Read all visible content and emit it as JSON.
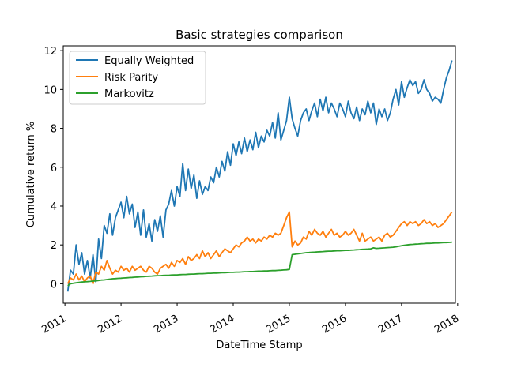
{
  "chart_data": {
    "type": "line",
    "title": "Basic strategies comparison",
    "xlabel": "DateTime Stamp",
    "ylabel": "Cumulative return %",
    "xlim": [
      2010.97,
      2017.96
    ],
    "ylim": [
      -1.0,
      12.25
    ],
    "x_ticks": [
      2011,
      2012,
      2013,
      2014,
      2015,
      2016,
      2017,
      2018
    ],
    "x_tick_labels": [
      "2011",
      "2012",
      "2013",
      "2014",
      "2015",
      "2016",
      "2017",
      "2018"
    ],
    "y_ticks": [
      0,
      2,
      4,
      6,
      8,
      10,
      12
    ],
    "y_tick_labels": [
      "0",
      "2",
      "4",
      "6",
      "8",
      "10",
      "12"
    ],
    "grid": false,
    "legend_position": "top-left",
    "series": [
      {
        "name": "Equally Weighted",
        "color": "#1f77b4",
        "x": [
          2011.05,
          2011.1,
          2011.15,
          2011.2,
          2011.25,
          2011.3,
          2011.35,
          2011.4,
          2011.45,
          2011.5,
          2011.55,
          2011.6,
          2011.65,
          2011.7,
          2011.75,
          2011.8,
          2011.85,
          2011.9,
          2011.95,
          2012.0,
          2012.05,
          2012.1,
          2012.15,
          2012.2,
          2012.25,
          2012.3,
          2012.35,
          2012.4,
          2012.45,
          2012.5,
          2012.55,
          2012.6,
          2012.65,
          2012.7,
          2012.75,
          2012.8,
          2012.85,
          2012.9,
          2012.95,
          2013.0,
          2013.05,
          2013.1,
          2013.15,
          2013.2,
          2013.25,
          2013.3,
          2013.35,
          2013.4,
          2013.45,
          2013.5,
          2013.55,
          2013.6,
          2013.65,
          2013.7,
          2013.75,
          2013.8,
          2013.85,
          2013.9,
          2013.95,
          2014.0,
          2014.05,
          2014.1,
          2014.15,
          2014.2,
          2014.25,
          2014.3,
          2014.35,
          2014.4,
          2014.45,
          2014.5,
          2014.55,
          2014.6,
          2014.65,
          2014.7,
          2014.75,
          2014.8,
          2014.85,
          2014.9,
          2014.95,
          2015.0,
          2015.05,
          2015.1,
          2015.15,
          2015.2,
          2015.25,
          2015.3,
          2015.35,
          2015.4,
          2015.45,
          2015.5,
          2015.55,
          2015.6,
          2015.65,
          2015.7,
          2015.75,
          2015.8,
          2015.85,
          2015.9,
          2015.95,
          2016.0,
          2016.05,
          2016.1,
          2016.15,
          2016.2,
          2016.25,
          2016.3,
          2016.35,
          2016.4,
          2016.45,
          2016.5,
          2016.55,
          2016.6,
          2016.65,
          2016.7,
          2016.75,
          2016.8,
          2016.85,
          2016.9,
          2016.95,
          2017.0,
          2017.05,
          2017.1,
          2017.15,
          2017.2,
          2017.25,
          2017.3,
          2017.35,
          2017.4,
          2017.45,
          2017.5,
          2017.55,
          2017.6,
          2017.65,
          2017.7,
          2017.75,
          2017.8,
          2017.85,
          2017.9
        ],
        "values": [
          -0.4,
          0.7,
          0.5,
          2.0,
          1.0,
          1.6,
          0.5,
          1.2,
          0.3,
          1.5,
          0.1,
          2.3,
          1.3,
          3.0,
          2.6,
          3.6,
          2.5,
          3.4,
          3.8,
          4.2,
          3.4,
          4.5,
          3.6,
          4.1,
          2.9,
          3.7,
          2.5,
          3.8,
          2.4,
          3.1,
          2.2,
          3.3,
          2.7,
          3.5,
          2.4,
          3.8,
          4.1,
          4.8,
          4.0,
          5.0,
          4.5,
          6.2,
          4.8,
          5.9,
          4.9,
          5.6,
          4.4,
          5.3,
          4.6,
          5.0,
          4.8,
          5.5,
          5.2,
          6.0,
          5.5,
          6.3,
          5.8,
          6.8,
          6.1,
          7.2,
          6.6,
          7.3,
          6.7,
          7.5,
          6.8,
          7.4,
          6.9,
          7.8,
          7.0,
          7.6,
          7.3,
          7.9,
          7.6,
          8.3,
          7.5,
          8.8,
          7.4,
          7.9,
          8.4,
          9.6,
          8.5,
          8.0,
          7.6,
          8.4,
          8.8,
          9.0,
          8.4,
          8.9,
          9.3,
          8.6,
          9.5,
          8.9,
          9.6,
          8.8,
          9.3,
          9.0,
          8.6,
          9.3,
          9.0,
          8.6,
          9.4,
          8.8,
          8.5,
          9.1,
          8.4,
          9.0,
          8.7,
          9.4,
          8.8,
          9.3,
          8.2,
          9.0,
          8.6,
          9.0,
          8.4,
          8.8,
          9.5,
          10.0,
          9.2,
          10.4,
          9.6,
          10.1,
          10.5,
          10.2,
          10.4,
          9.8,
          10.0,
          10.5,
          10.0,
          9.8,
          9.4,
          9.6,
          9.5,
          9.3,
          10.0,
          10.6,
          11.0,
          11.5
        ]
      },
      {
        "name": "Risk Parity",
        "color": "#ff7f0e",
        "x": [
          2011.05,
          2011.1,
          2011.15,
          2011.2,
          2011.25,
          2011.3,
          2011.35,
          2011.4,
          2011.45,
          2011.5,
          2011.55,
          2011.6,
          2011.65,
          2011.7,
          2011.75,
          2011.8,
          2011.85,
          2011.9,
          2011.95,
          2012.0,
          2012.05,
          2012.1,
          2012.15,
          2012.2,
          2012.25,
          2012.3,
          2012.35,
          2012.4,
          2012.45,
          2012.5,
          2012.55,
          2012.6,
          2012.65,
          2012.7,
          2012.75,
          2012.8,
          2012.85,
          2012.9,
          2012.95,
          2013.0,
          2013.05,
          2013.1,
          2013.15,
          2013.2,
          2013.25,
          2013.3,
          2013.35,
          2013.4,
          2013.45,
          2013.5,
          2013.55,
          2013.6,
          2013.65,
          2013.7,
          2013.75,
          2013.8,
          2013.85,
          2013.9,
          2013.95,
          2014.0,
          2014.05,
          2014.1,
          2014.15,
          2014.2,
          2014.25,
          2014.3,
          2014.35,
          2014.4,
          2014.45,
          2014.5,
          2014.55,
          2014.6,
          2014.65,
          2014.7,
          2014.75,
          2014.8,
          2014.85,
          2014.9,
          2014.95,
          2015.0,
          2015.05,
          2015.1,
          2015.15,
          2015.2,
          2015.25,
          2015.3,
          2015.35,
          2015.4,
          2015.45,
          2015.5,
          2015.55,
          2015.6,
          2015.65,
          2015.7,
          2015.75,
          2015.8,
          2015.85,
          2015.9,
          2015.95,
          2016.0,
          2016.05,
          2016.1,
          2016.15,
          2016.2,
          2016.25,
          2016.3,
          2016.35,
          2016.4,
          2016.45,
          2016.5,
          2016.55,
          2016.6,
          2016.65,
          2016.7,
          2016.75,
          2016.8,
          2016.85,
          2016.9,
          2016.95,
          2017.0,
          2017.05,
          2017.1,
          2017.15,
          2017.2,
          2017.25,
          2017.3,
          2017.35,
          2017.4,
          2017.45,
          2017.5,
          2017.55,
          2017.6,
          2017.65,
          2017.7,
          2017.75,
          2017.8,
          2017.85,
          2017.9
        ],
        "values": [
          0.0,
          0.3,
          0.2,
          0.5,
          0.2,
          0.4,
          0.1,
          0.3,
          0.4,
          0.0,
          0.6,
          0.5,
          0.9,
          0.7,
          1.2,
          0.8,
          0.5,
          0.7,
          0.6,
          0.9,
          0.7,
          0.8,
          0.6,
          0.9,
          0.7,
          0.8,
          0.9,
          0.7,
          0.6,
          0.9,
          0.8,
          0.6,
          0.5,
          0.8,
          0.9,
          1.0,
          0.8,
          1.1,
          0.9,
          1.2,
          1.1,
          1.3,
          1.0,
          1.4,
          1.2,
          1.3,
          1.5,
          1.3,
          1.7,
          1.4,
          1.6,
          1.3,
          1.5,
          1.7,
          1.4,
          1.6,
          1.8,
          1.7,
          1.6,
          1.8,
          2.0,
          1.9,
          2.1,
          2.2,
          2.4,
          2.2,
          2.3,
          2.1,
          2.3,
          2.2,
          2.4,
          2.3,
          2.5,
          2.4,
          2.6,
          2.5,
          2.6,
          3.0,
          3.4,
          3.7,
          1.9,
          2.2,
          2.0,
          2.1,
          2.4,
          2.3,
          2.7,
          2.5,
          2.8,
          2.6,
          2.5,
          2.7,
          2.4,
          2.6,
          2.8,
          2.5,
          2.6,
          2.4,
          2.5,
          2.7,
          2.5,
          2.6,
          2.8,
          2.5,
          2.2,
          2.6,
          2.2,
          2.3,
          2.4,
          2.2,
          2.3,
          2.4,
          2.2,
          2.5,
          2.6,
          2.4,
          2.5,
          2.7,
          2.9,
          3.1,
          3.2,
          3.0,
          3.2,
          3.1,
          3.2,
          3.0,
          3.1,
          3.3,
          3.1,
          3.2,
          3.0,
          3.1,
          2.9,
          3.0,
          3.1,
          3.3,
          3.5,
          3.7
        ]
      },
      {
        "name": "Markovitz",
        "color": "#2ca02c",
        "x": [
          2011.05,
          2011.1,
          2011.15,
          2011.2,
          2011.25,
          2011.3,
          2011.35,
          2011.4,
          2011.45,
          2011.5,
          2011.55,
          2011.6,
          2011.65,
          2011.7,
          2011.75,
          2011.8,
          2011.85,
          2011.9,
          2011.95,
          2012.0,
          2012.05,
          2012.1,
          2012.15,
          2012.2,
          2012.25,
          2012.3,
          2012.35,
          2012.4,
          2012.45,
          2012.5,
          2012.55,
          2012.6,
          2012.65,
          2012.7,
          2012.75,
          2012.8,
          2012.85,
          2012.9,
          2012.95,
          2013.0,
          2013.05,
          2013.1,
          2013.15,
          2013.2,
          2013.25,
          2013.3,
          2013.35,
          2013.4,
          2013.45,
          2013.5,
          2013.55,
          2013.6,
          2013.65,
          2013.7,
          2013.75,
          2013.8,
          2013.85,
          2013.9,
          2013.95,
          2014.0,
          2014.05,
          2014.1,
          2014.15,
          2014.2,
          2014.25,
          2014.3,
          2014.35,
          2014.4,
          2014.45,
          2014.5,
          2014.55,
          2014.6,
          2014.65,
          2014.7,
          2014.75,
          2014.8,
          2014.85,
          2014.9,
          2014.95,
          2015.0,
          2015.05,
          2015.1,
          2015.15,
          2015.2,
          2015.25,
          2015.3,
          2015.35,
          2015.4,
          2015.45,
          2015.5,
          2015.55,
          2015.6,
          2015.65,
          2015.7,
          2015.75,
          2015.8,
          2015.85,
          2015.9,
          2015.95,
          2016.0,
          2016.05,
          2016.1,
          2016.15,
          2016.2,
          2016.25,
          2016.3,
          2016.35,
          2016.4,
          2016.45,
          2016.5,
          2016.55,
          2016.6,
          2016.65,
          2016.7,
          2016.75,
          2016.8,
          2016.85,
          2016.9,
          2016.95,
          2017.0,
          2017.05,
          2017.1,
          2017.15,
          2017.2,
          2017.25,
          2017.3,
          2017.35,
          2017.4,
          2017.45,
          2017.5,
          2017.55,
          2017.6,
          2017.65,
          2017.7,
          2017.75,
          2017.8,
          2017.85,
          2017.9
        ],
        "values": [
          -0.1,
          0.0,
          0.03,
          0.05,
          0.07,
          0.09,
          0.1,
          0.11,
          0.12,
          0.14,
          0.15,
          0.17,
          0.19,
          0.2,
          0.22,
          0.24,
          0.26,
          0.27,
          0.28,
          0.29,
          0.3,
          0.31,
          0.32,
          0.33,
          0.34,
          0.35,
          0.36,
          0.37,
          0.38,
          0.39,
          0.4,
          0.41,
          0.42,
          0.42,
          0.43,
          0.44,
          0.44,
          0.45,
          0.46,
          0.46,
          0.47,
          0.48,
          0.48,
          0.49,
          0.5,
          0.5,
          0.51,
          0.52,
          0.52,
          0.53,
          0.54,
          0.54,
          0.55,
          0.55,
          0.56,
          0.57,
          0.57,
          0.58,
          0.59,
          0.59,
          0.6,
          0.6,
          0.61,
          0.62,
          0.62,
          0.63,
          0.63,
          0.64,
          0.65,
          0.65,
          0.66,
          0.66,
          0.67,
          0.68,
          0.68,
          0.69,
          0.7,
          0.71,
          0.72,
          0.74,
          1.5,
          1.52,
          1.54,
          1.56,
          1.58,
          1.6,
          1.61,
          1.62,
          1.63,
          1.64,
          1.65,
          1.66,
          1.67,
          1.68,
          1.68,
          1.69,
          1.7,
          1.7,
          1.71,
          1.72,
          1.72,
          1.73,
          1.74,
          1.75,
          1.76,
          1.77,
          1.78,
          1.79,
          1.8,
          1.85,
          1.82,
          1.83,
          1.84,
          1.85,
          1.86,
          1.87,
          1.88,
          1.9,
          1.93,
          1.96,
          1.98,
          2.0,
          2.02,
          2.03,
          2.04,
          2.05,
          2.06,
          2.07,
          2.08,
          2.08,
          2.09,
          2.1,
          2.1,
          2.11,
          2.12,
          2.12,
          2.13,
          2.14
        ]
      }
    ]
  }
}
